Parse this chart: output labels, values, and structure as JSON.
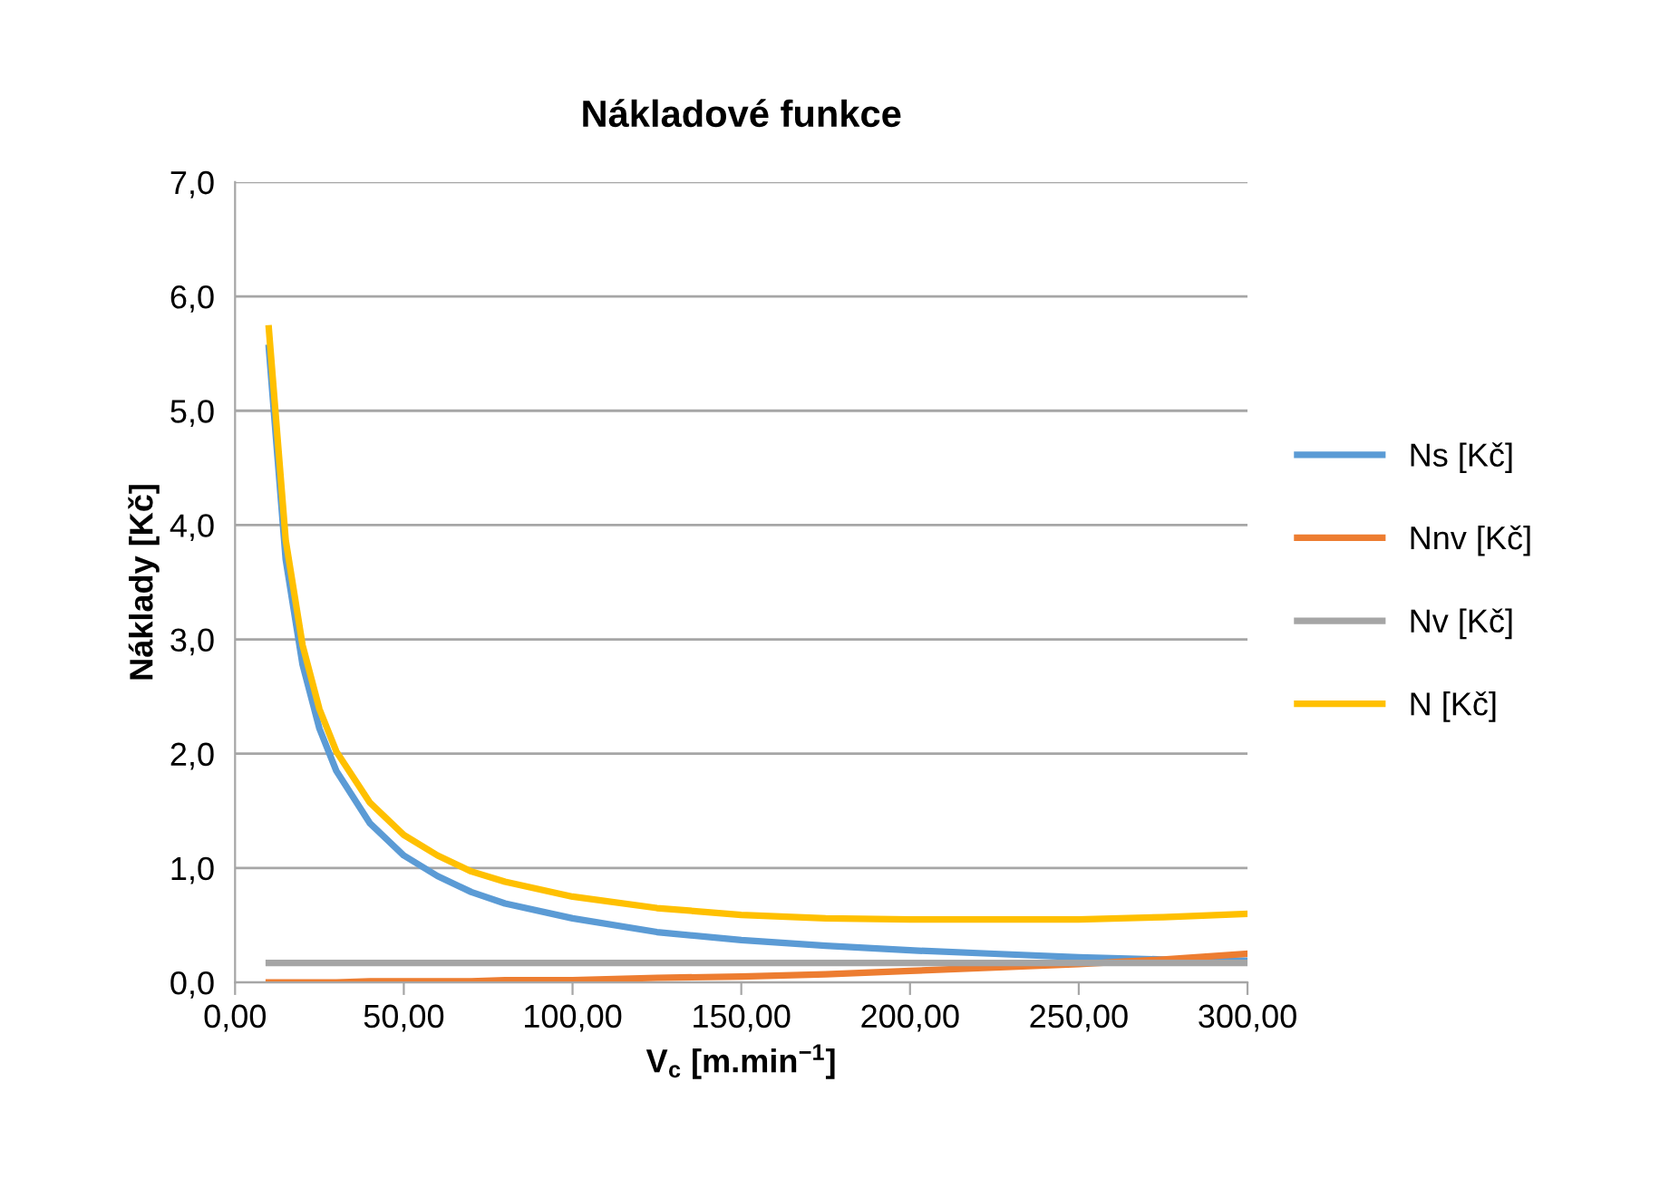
{
  "chart_data": {
    "type": "line",
    "title": "Nákladové funkce",
    "xlabel": "V$_{c}$ [m.min$^{−1}$]",
    "ylabel": "Náklady [Kč]",
    "x": [
      10,
      15,
      20,
      25,
      30,
      40,
      50,
      60,
      70,
      80,
      100,
      125,
      150,
      175,
      200,
      225,
      250,
      275,
      300
    ],
    "series": [
      {
        "name": "Ns [Kč]",
        "color": "#5b9bd5",
        "values": [
          5.55,
          3.7,
          2.78,
          2.22,
          1.85,
          1.39,
          1.11,
          0.93,
          0.79,
          0.69,
          0.56,
          0.44,
          0.37,
          0.32,
          0.28,
          0.25,
          0.22,
          0.2,
          0.19
        ]
      },
      {
        "name": "Nnv [Kč]",
        "color": "#ed7d31",
        "values": [
          0.0,
          0.0,
          0.0,
          0.0,
          0.0,
          0.01,
          0.01,
          0.01,
          0.01,
          0.02,
          0.02,
          0.04,
          0.05,
          0.07,
          0.1,
          0.13,
          0.16,
          0.2,
          0.25
        ]
      },
      {
        "name": "Nv [Kč]",
        "color": "#a5a5a5",
        "values": [
          0.17,
          0.17,
          0.17,
          0.17,
          0.17,
          0.17,
          0.17,
          0.17,
          0.17,
          0.17,
          0.17,
          0.17,
          0.17,
          0.17,
          0.17,
          0.17,
          0.17,
          0.17,
          0.17
        ]
      },
      {
        "name": "N [Kč]",
        "color": "#ffc000",
        "values": [
          5.72,
          3.87,
          2.95,
          2.39,
          2.02,
          1.57,
          1.29,
          1.11,
          0.97,
          0.88,
          0.75,
          0.65,
          0.59,
          0.56,
          0.55,
          0.55,
          0.55,
          0.57,
          0.6
        ]
      }
    ],
    "xlim": [
      0,
      300
    ],
    "ylim": [
      0,
      7
    ],
    "xticks": [
      {
        "value": 0,
        "label": "0,00"
      },
      {
        "value": 50,
        "label": "50,00"
      },
      {
        "value": 100,
        "label": "100,00"
      },
      {
        "value": 150,
        "label": "150,00"
      },
      {
        "value": 200,
        "label": "200,00"
      },
      {
        "value": 250,
        "label": "250,00"
      },
      {
        "value": 300,
        "label": "300,00"
      }
    ],
    "yticks": [
      {
        "value": 0,
        "label": "0,0"
      },
      {
        "value": 1,
        "label": "1,0"
      },
      {
        "value": 2,
        "label": "2,0"
      },
      {
        "value": 3,
        "label": "3,0"
      },
      {
        "value": 4,
        "label": "4,0"
      },
      {
        "value": 5,
        "label": "5,0"
      },
      {
        "value": 6,
        "label": "6,0"
      },
      {
        "value": 7,
        "label": "7,0"
      }
    ],
    "grid": "y",
    "legend": "right",
    "marker": "none",
    "line_style": "solid"
  }
}
